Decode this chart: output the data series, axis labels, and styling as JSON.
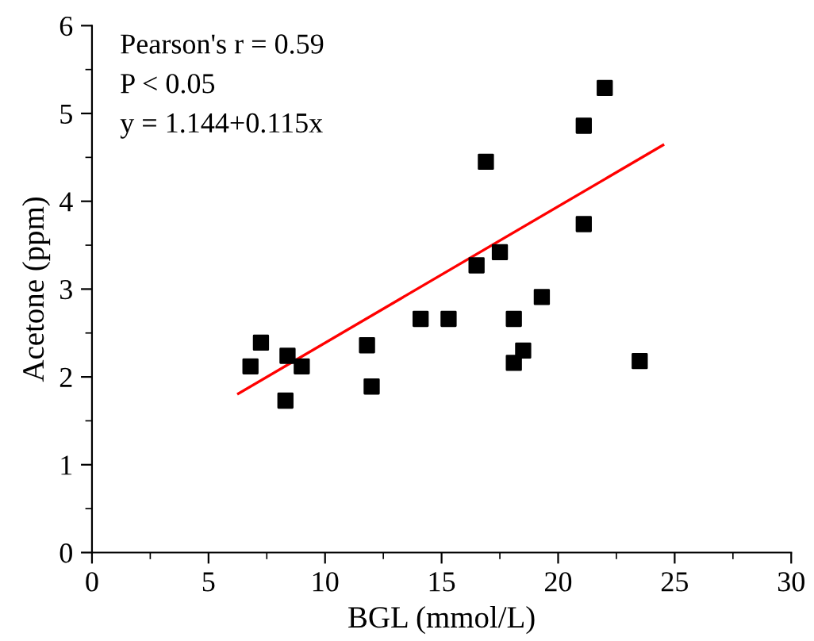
{
  "chart_data": {
    "type": "scatter",
    "xlabel": "BGL (mmol/L)",
    "ylabel": "Acetone (ppm)",
    "xlim": [
      0,
      30
    ],
    "xticks": [
      0,
      5,
      10,
      15,
      20,
      25,
      30
    ],
    "ylim": [
      0,
      6
    ],
    "yticks": [
      0,
      1,
      2,
      3,
      4,
      5,
      6
    ],
    "marker": "square",
    "grid": false,
    "series": [
      {
        "color": "#000000",
        "x": [
          6.8,
          7.25,
          8.39,
          8.3,
          9.0,
          11.8,
          12.0,
          14.1,
          15.3,
          18.1,
          18.1,
          18.5,
          19.3,
          23.5,
          16.9,
          17.5,
          16.5,
          21.1,
          21.1,
          22.0
        ],
        "values": [
          2.12,
          2.39,
          2.24,
          1.73,
          2.12,
          2.36,
          1.89,
          2.66,
          2.66,
          2.66,
          2.16,
          2.3,
          2.91,
          2.18,
          4.45,
          3.42,
          3.27,
          3.74,
          4.86,
          5.29
        ]
      },
      {
        "type": "line",
        "color": "#ff0000",
        "marker": "none",
        "x": [
          6.28,
          24.5
        ],
        "values": [
          1.81,
          4.64
        ]
      }
    ],
    "annotations": [
      "Pearson's r = 0.59",
      "P < 0.05",
      "y = 1.144+0.115x"
    ]
  }
}
